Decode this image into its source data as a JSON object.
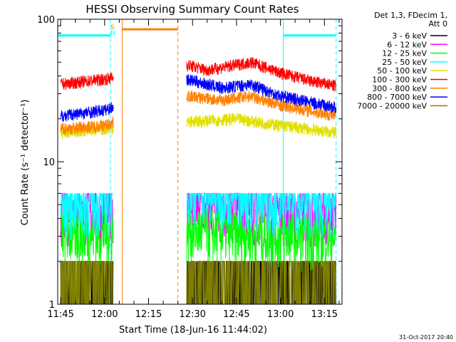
{
  "chart_data": {
    "type": "line",
    "title": "HESSI Observing Summary Count Rates",
    "xlabel": "Start Time (18-Jun-16 11:44:02)",
    "ylabel": "Count Rate (s⁻¹ detector⁻¹)",
    "yscale": "log",
    "ylim": [
      1,
      100
    ],
    "xlim": [
      "11:44",
      "13:21"
    ],
    "x_ticks": [
      "11:45",
      "12:00",
      "12:15",
      "12:30",
      "12:45",
      "13:00",
      "13:15"
    ],
    "y_ticks": [
      "1",
      "10",
      "100"
    ],
    "legend_header": [
      "Det 1,3, FDecim 1,",
      "Att 0"
    ],
    "legend_position": "top-right",
    "timestamp": "31-Oct-2017 20:40",
    "flags": [
      {
        "name": "S",
        "color": "#ff8000",
        "time": "12:03"
      },
      {
        "name": "N",
        "color": "#00ffff",
        "time": "12:03"
      }
    ],
    "data_gap": {
      "start": "12:06",
      "end": "12:25",
      "color": "#ff8000",
      "level": 85
    },
    "saa_bars": [
      {
        "start": "11:44",
        "end": "12:02",
        "color": "#00ffff",
        "level": 77
      },
      {
        "start": "13:01",
        "end": "13:19",
        "color": "#00ffff",
        "level": 77
      }
    ],
    "vlines": [
      {
        "time": "12:02",
        "style": "dashed",
        "color": "#00ffff"
      },
      {
        "time": "12:06",
        "style": "solid",
        "color": "#ff8000"
      },
      {
        "time": "12:25",
        "style": "dashed",
        "color": "#ff8000"
      },
      {
        "time": "13:01",
        "style": "solid",
        "color": "#00ffff"
      },
      {
        "time": "13:19",
        "style": "dashed",
        "color": "#00ffff"
      }
    ],
    "series": [
      {
        "name": "3 - 6 keV",
        "color": "#000000",
        "x": [
          "11:45",
          "12:00",
          "12:28",
          "12:45",
          "13:00",
          "13:19"
        ],
        "y": [
          1,
          1,
          1.5,
          1.5,
          1,
          1
        ]
      },
      {
        "name": "6 - 12 keV",
        "color": "#ff00ff",
        "x": [
          "11:45",
          "12:00",
          "12:28",
          "12:45",
          "13:00",
          "13:19"
        ],
        "y": [
          4.5,
          4.5,
          5.0,
          4.8,
          4.5,
          4.5
        ]
      },
      {
        "name": "12 - 25 keV",
        "color": "#00ff00",
        "x": [
          "11:45",
          "12:00",
          "12:28",
          "12:45",
          "13:00",
          "13:19"
        ],
        "y": [
          3.2,
          3.2,
          3.4,
          3.2,
          3.1,
          3.0
        ]
      },
      {
        "name": "25 - 50 keV",
        "color": "#00ffff",
        "x": [
          "11:45",
          "12:00",
          "12:28",
          "12:45",
          "13:00",
          "13:19"
        ],
        "y": [
          5.0,
          5.2,
          6.5,
          6.0,
          5.5,
          5.0
        ]
      },
      {
        "name": "50 - 100 keV",
        "color": "#e0e000",
        "x": [
          "11:45",
          "12:00",
          "12:28",
          "12:45",
          "13:00",
          "13:19"
        ],
        "y": [
          16,
          17,
          19,
          20,
          18,
          16
        ]
      },
      {
        "name": "100 - 300 keV",
        "color": "#ff0000",
        "x": [
          "11:45",
          "12:00",
          "12:28",
          "12:35",
          "12:50",
          "13:00",
          "13:10",
          "13:19"
        ],
        "y": [
          35,
          38,
          48,
          44,
          50,
          42,
          37,
          34
        ]
      },
      {
        "name": "300 - 800 keV",
        "color": "#ff8000",
        "x": [
          "11:45",
          "12:00",
          "12:28",
          "12:40",
          "12:50",
          "13:00",
          "13:19"
        ],
        "y": [
          17,
          18,
          29,
          27,
          29,
          25,
          21
        ]
      },
      {
        "name": "800 - 7000 keV",
        "color": "#0000ff",
        "x": [
          "11:45",
          "12:00",
          "12:28",
          "12:40",
          "12:50",
          "13:00",
          "13:19"
        ],
        "y": [
          21,
          23,
          38,
          33,
          35,
          29,
          24
        ]
      },
      {
        "name": "7000 - 20000 keV",
        "color": "#808000",
        "x": [
          "11:45",
          "12:00",
          "12:28",
          "12:45",
          "13:00",
          "13:19"
        ],
        "y": [
          1.6,
          1.6,
          1.6,
          1.6,
          1.6,
          1.6
        ]
      }
    ]
  }
}
